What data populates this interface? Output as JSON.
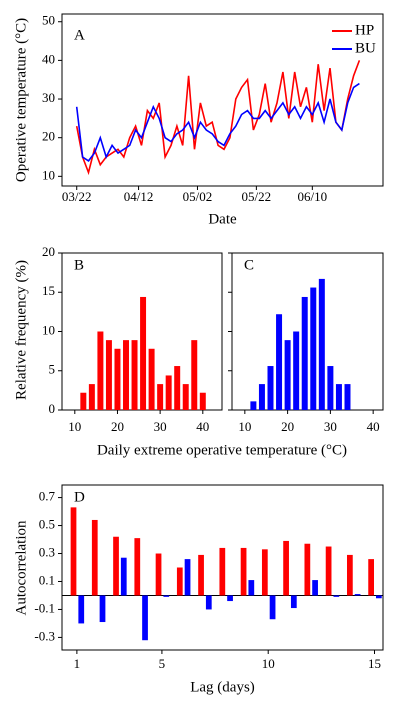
{
  "chart_data": [
    {
      "type": "line",
      "panel_label": "A",
      "y_label": "Operative temperature (°C)",
      "x_label": "Date",
      "x": [
        "03/22",
        "03/24",
        "03/26",
        "03/28",
        "03/30",
        "04/01",
        "04/03",
        "04/05",
        "04/07",
        "04/09",
        "04/11",
        "04/13",
        "04/15",
        "04/17",
        "04/19",
        "04/21",
        "04/23",
        "04/25",
        "04/27",
        "04/29",
        "05/01",
        "05/03",
        "05/05",
        "05/07",
        "05/09",
        "05/11",
        "05/13",
        "05/15",
        "05/17",
        "05/19",
        "05/21",
        "05/23",
        "05/25",
        "05/27",
        "05/29",
        "05/31",
        "06/02",
        "06/04",
        "06/06",
        "06/08",
        "06/10",
        "06/12",
        "06/14",
        "06/16",
        "06/18",
        "06/20",
        "06/22",
        "06/24",
        "06/26"
      ],
      "series": [
        {
          "name": "HP",
          "color": "#ff0000",
          "values": [
            23,
            15,
            11,
            17,
            13,
            15,
            16,
            17,
            15,
            20,
            23,
            18,
            27,
            25,
            29,
            15,
            18,
            23,
            18,
            36,
            17,
            29,
            23,
            24,
            18,
            17,
            20,
            30,
            33,
            35,
            22,
            26,
            34,
            24,
            29,
            37,
            25,
            37,
            28,
            33,
            24,
            39,
            27,
            38,
            24,
            22,
            30,
            36,
            40
          ]
        },
        {
          "name": "BU",
          "color": "#0000ff",
          "values": [
            28,
            15,
            14,
            16,
            20,
            15,
            18,
            16,
            17,
            18,
            22,
            20,
            24,
            28,
            25,
            20,
            19,
            21,
            22,
            24,
            20,
            24,
            22,
            21,
            19,
            18,
            21,
            23,
            26,
            27,
            25,
            25,
            27,
            25,
            27,
            29,
            26,
            28,
            25,
            28,
            26,
            29,
            24,
            30,
            24,
            22,
            29,
            33,
            34
          ]
        }
      ],
      "xlim": [
        "03/17",
        "07/04"
      ],
      "xticks": [
        "03/22",
        "04/12",
        "05/02",
        "05/22",
        "06/10"
      ],
      "ylim": [
        7.5,
        52
      ],
      "yticks": [
        10,
        20,
        30,
        40,
        50
      ],
      "legend": "upper right"
    },
    {
      "type": "histogram",
      "panel_label": "B",
      "y_label": "Relative frequency (%)",
      "x_label": "Daily extreme operative temperature (°C)",
      "bins": [
        11,
        13,
        15,
        17,
        19,
        21,
        23,
        25,
        27,
        29,
        31,
        33,
        35,
        37,
        39,
        41
      ],
      "values": [
        2.2,
        3.3,
        10,
        8.9,
        7.8,
        8.9,
        8.9,
        14.4,
        7.8,
        3.3,
        4.4,
        5.6,
        3.3,
        8.9,
        2.2
      ],
      "color": "#ff0000",
      "xlim": [
        7,
        44.5
      ],
      "xticks": [
        10,
        20,
        30,
        40
      ],
      "ylim": [
        0,
        20
      ],
      "yticks": [
        0,
        5,
        10,
        15,
        20
      ]
    },
    {
      "type": "histogram",
      "panel_label": "C",
      "bins": [
        11,
        13,
        15,
        17,
        19,
        21,
        23,
        25,
        27,
        29,
        31,
        33,
        35
      ],
      "values": [
        1.1,
        3.3,
        5.6,
        12.2,
        8.9,
        10,
        14.4,
        15.6,
        16.7,
        5.6,
        3.3,
        3.3
      ],
      "color": "#0000ff",
      "xlim": [
        7,
        42.3
      ],
      "xticks": [
        10,
        20,
        30,
        40
      ],
      "ylim": [
        0,
        20
      ],
      "yticks": [
        0,
        5,
        10,
        15,
        20
      ]
    },
    {
      "type": "grouped_bar",
      "panel_label": "D",
      "y_label": "Autocorrelation",
      "x_label": "Lag (days)",
      "x": [
        1,
        2,
        3,
        4,
        5,
        6,
        7,
        8,
        9,
        10,
        11,
        12,
        13,
        14,
        15
      ],
      "series": [
        {
          "name": "HP",
          "color": "#ff0000",
          "values": [
            0.63,
            0.54,
            0.42,
            0.41,
            0.3,
            0.2,
            0.29,
            0.34,
            0.34,
            0.33,
            0.39,
            0.37,
            0.35,
            0.29,
            0.26
          ]
        },
        {
          "name": "BU",
          "color": "#0000ff",
          "values": [
            -0.2,
            -0.19,
            0.27,
            -0.32,
            -0.01,
            0.26,
            -0.1,
            -0.04,
            0.11,
            -0.17,
            -0.09,
            0.11,
            -0.01,
            0.01,
            -0.02
          ]
        }
      ],
      "xlim": [
        0.3,
        15.4
      ],
      "xticks": [
        1,
        5,
        10,
        15
      ],
      "ylim": [
        -0.39,
        0.79
      ],
      "yticks": [
        -0.3,
        -0.1,
        0.1,
        0.3,
        0.5,
        0.7
      ]
    }
  ]
}
